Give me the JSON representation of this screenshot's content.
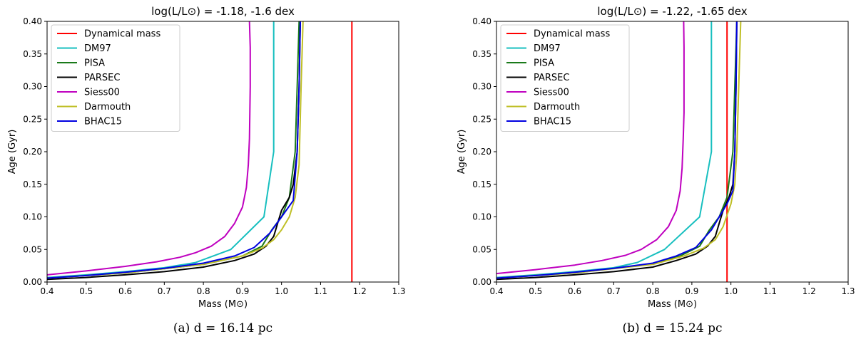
{
  "figure": {
    "legend_position": "upper-left",
    "series_colors": {
      "Dynamical mass": "#ff0000",
      "DM97": "#17bfbf",
      "PISA": "#1a7a1a",
      "PARSEC": "#000000",
      "Siess00": "#bf00bf",
      "Darmouth": "#bfbf26",
      "BHAC15": "#0000e0"
    }
  },
  "chart_data": [
    {
      "type": "line",
      "title": "log(L/L⊙) = -1.18, -1.6 dex",
      "caption": "(a) d = 16.14 pc",
      "xlabel": "Mass (M⊙)",
      "ylabel": "Age (Gyr)",
      "xlim": [
        0.4,
        1.3
      ],
      "ylim": [
        0.0,
        0.4
      ],
      "xticks": [
        "0.4",
        "0.5",
        "0.6",
        "0.7",
        "0.8",
        "0.9",
        "1.0",
        "1.1",
        "1.2",
        "1.3"
      ],
      "yticks": [
        "0.00",
        "0.05",
        "0.10",
        "0.15",
        "0.20",
        "0.25",
        "0.30",
        "0.35",
        "0.40"
      ],
      "series": [
        {
          "name": "Dynamical mass",
          "x": [
            1.18,
            1.18
          ],
          "y": [
            0.0,
            0.4
          ]
        },
        {
          "name": "DM97",
          "x": [
            0.4,
            0.5,
            0.6,
            0.7,
            0.78,
            0.87,
            0.955,
            0.98,
            0.98
          ],
          "y": [
            0.007,
            0.011,
            0.016,
            0.022,
            0.03,
            0.05,
            0.1,
            0.2,
            0.4
          ]
        },
        {
          "name": "PISA",
          "x": [
            0.4,
            0.6,
            0.8,
            0.9,
            0.95,
            0.975,
            1.0,
            1.02,
            1.035,
            1.04,
            1.045
          ],
          "y": [
            0.006,
            0.014,
            0.027,
            0.04,
            0.055,
            0.08,
            0.1,
            0.13,
            0.2,
            0.3,
            0.4
          ]
        },
        {
          "name": "PARSEC",
          "x": [
            0.4,
            0.5,
            0.6,
            0.7,
            0.8,
            0.88,
            0.93,
            0.96,
            0.98,
            0.99,
            1.0,
            1.02,
            1.03,
            1.04,
            1.045,
            1.048
          ],
          "y": [
            0.004,
            0.007,
            0.011,
            0.016,
            0.023,
            0.033,
            0.043,
            0.055,
            0.07,
            0.09,
            0.11,
            0.13,
            0.15,
            0.2,
            0.3,
            0.4
          ]
        },
        {
          "name": "Siess00",
          "x": [
            0.4,
            0.5,
            0.6,
            0.68,
            0.74,
            0.78,
            0.82,
            0.855,
            0.88,
            0.9,
            0.91,
            0.915,
            0.918,
            0.92,
            0.92,
            0.918
          ],
          "y": [
            0.011,
            0.017,
            0.024,
            0.031,
            0.038,
            0.045,
            0.055,
            0.07,
            0.09,
            0.115,
            0.145,
            0.18,
            0.22,
            0.3,
            0.36,
            0.4
          ]
        },
        {
          "name": "Darmouth",
          "x": [
            0.4,
            0.6,
            0.8,
            0.9,
            0.95,
            0.98,
            1.0,
            1.02,
            1.035,
            1.045,
            1.05,
            1.055
          ],
          "y": [
            0.006,
            0.014,
            0.027,
            0.04,
            0.052,
            0.065,
            0.08,
            0.1,
            0.13,
            0.18,
            0.3,
            0.4
          ]
        },
        {
          "name": "BHAC15",
          "x": [
            0.4,
            0.5,
            0.6,
            0.7,
            0.8,
            0.88,
            0.93,
            0.97,
            1.0,
            1.03,
            1.04,
            1.045,
            1.048
          ],
          "y": [
            0.006,
            0.01,
            0.015,
            0.021,
            0.029,
            0.04,
            0.053,
            0.075,
            0.1,
            0.125,
            0.2,
            0.3,
            0.4
          ]
        }
      ]
    },
    {
      "type": "line",
      "title": "log(L/L⊙) = -1.22, -1.65 dex",
      "caption": "(b) d = 15.24 pc",
      "xlabel": "Mass (M⊙)",
      "ylabel": "Age (Gyr)",
      "xlim": [
        0.4,
        1.3
      ],
      "ylim": [
        0.0,
        0.4
      ],
      "xticks": [
        "0.4",
        "0.5",
        "0.6",
        "0.7",
        "0.8",
        "0.9",
        "1.0",
        "1.1",
        "1.2",
        "1.3"
      ],
      "yticks": [
        "0.00",
        "0.05",
        "0.10",
        "0.15",
        "0.20",
        "0.25",
        "0.30",
        "0.35",
        "0.40"
      ],
      "series": [
        {
          "name": "Dynamical mass",
          "x": [
            0.99,
            0.99
          ],
          "y": [
            0.0,
            0.4
          ]
        },
        {
          "name": "DM97",
          "x": [
            0.4,
            0.5,
            0.6,
            0.7,
            0.76,
            0.83,
            0.92,
            0.95,
            0.95
          ],
          "y": [
            0.007,
            0.011,
            0.016,
            0.022,
            0.03,
            0.05,
            0.1,
            0.2,
            0.4
          ]
        },
        {
          "name": "PISA",
          "x": [
            0.4,
            0.6,
            0.8,
            0.87,
            0.92,
            0.945,
            0.97,
            0.99,
            1.005,
            1.01,
            1.015
          ],
          "y": [
            0.006,
            0.014,
            0.028,
            0.04,
            0.055,
            0.08,
            0.1,
            0.13,
            0.2,
            0.3,
            0.4
          ]
        },
        {
          "name": "PARSEC",
          "x": [
            0.4,
            0.5,
            0.6,
            0.7,
            0.8,
            0.86,
            0.91,
            0.94,
            0.96,
            0.97,
            0.98,
            0.995,
            1.005,
            1.01,
            1.013,
            1.015
          ],
          "y": [
            0.004,
            0.007,
            0.011,
            0.016,
            0.023,
            0.033,
            0.043,
            0.055,
            0.07,
            0.09,
            0.11,
            0.13,
            0.15,
            0.2,
            0.3,
            0.4
          ]
        },
        {
          "name": "Siess00",
          "x": [
            0.4,
            0.5,
            0.6,
            0.67,
            0.73,
            0.77,
            0.81,
            0.84,
            0.86,
            0.87,
            0.875,
            0.878,
            0.88,
            0.88,
            0.88,
            0.879
          ],
          "y": [
            0.013,
            0.019,
            0.026,
            0.033,
            0.041,
            0.05,
            0.065,
            0.085,
            0.11,
            0.14,
            0.175,
            0.22,
            0.26,
            0.3,
            0.36,
            0.4
          ]
        },
        {
          "name": "Darmouth",
          "x": [
            0.4,
            0.6,
            0.8,
            0.88,
            0.93,
            0.96,
            0.98,
            1.0,
            1.01,
            1.015,
            1.02,
            1.025
          ],
          "y": [
            0.006,
            0.014,
            0.027,
            0.04,
            0.052,
            0.065,
            0.085,
            0.12,
            0.15,
            0.2,
            0.3,
            0.4
          ]
        },
        {
          "name": "BHAC15",
          "x": [
            0.4,
            0.5,
            0.6,
            0.7,
            0.8,
            0.86,
            0.91,
            0.95,
            0.99,
            1.005,
            1.01,
            1.013,
            1.015
          ],
          "y": [
            0.006,
            0.01,
            0.015,
            0.021,
            0.029,
            0.04,
            0.053,
            0.08,
            0.12,
            0.14,
            0.2,
            0.3,
            0.4
          ]
        }
      ]
    }
  ]
}
